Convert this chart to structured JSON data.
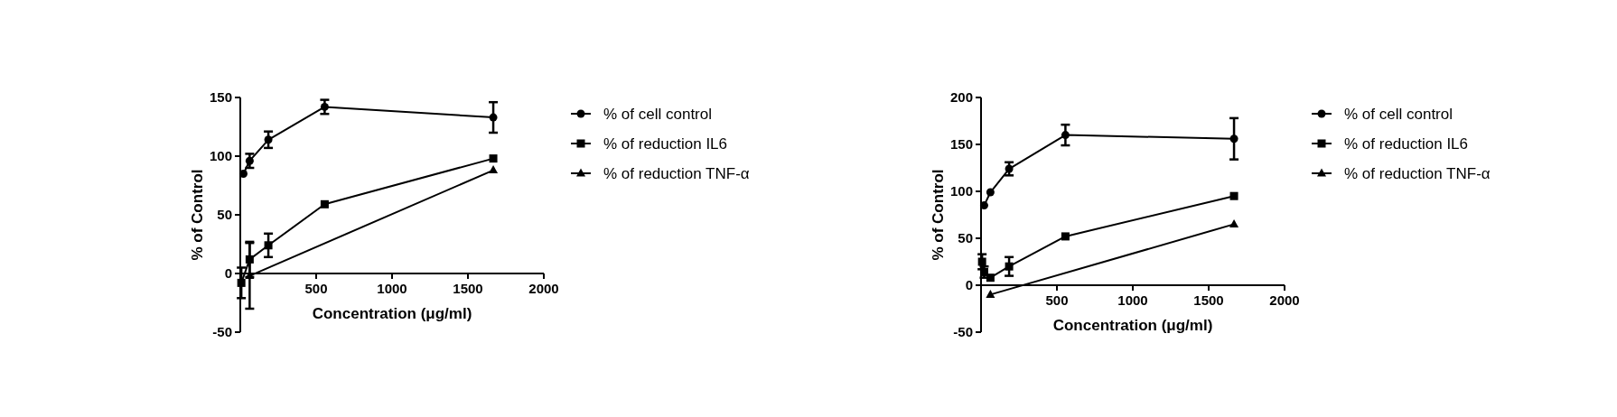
{
  "chart_data": [
    {
      "type": "line",
      "xlabel": "Concentration (μg/ml)",
      "ylabel": "% of Control",
      "xlim": [
        0,
        2000
      ],
      "ylim": [
        -50,
        150
      ],
      "xticks": [
        500,
        1000,
        1500,
        2000
      ],
      "yticks": [
        -50,
        0,
        50,
        100,
        150
      ],
      "legend": "right",
      "grid": false,
      "series": [
        {
          "name": "% of cell control",
          "color": "#000000",
          "marker": "circle",
          "x": [
            20.6,
            61.7,
            185,
            556,
            1667
          ],
          "values": [
            85,
            96,
            114,
            142,
            133
          ],
          "errors": [
            null,
            6,
            7,
            6,
            13
          ]
        },
        {
          "name": "% of reduction IL6",
          "color": "#000000",
          "marker": "square",
          "x": [
            6.86,
            61.7,
            185,
            556,
            1667
          ],
          "values": [
            -8,
            12,
            24,
            59,
            98
          ],
          "errors": [
            13,
            15,
            10,
            null,
            null
          ]
        },
        {
          "name": "% of reduction TNF-α",
          "color": "#000000",
          "marker": "triangle",
          "x": [
            61.7,
            1667
          ],
          "values": [
            -2,
            88
          ],
          "errors": [
            28,
            null
          ]
        }
      ]
    },
    {
      "type": "line",
      "xlabel": "Concentration (μg/ml)",
      "ylabel": "% of Control",
      "xlim": [
        0,
        2000
      ],
      "ylim": [
        -50,
        200
      ],
      "xticks": [
        500,
        1000,
        1500,
        2000
      ],
      "yticks": [
        -50,
        0,
        50,
        100,
        150,
        200
      ],
      "legend": "right",
      "grid": false,
      "series": [
        {
          "name": "% of cell control",
          "color": "#000000",
          "marker": "circle",
          "x": [
            20.6,
            61.7,
            185,
            556,
            1667
          ],
          "values": [
            85,
            99,
            124,
            160,
            156
          ],
          "errors": [
            null,
            null,
            7,
            11,
            22
          ]
        },
        {
          "name": "% of reduction IL6",
          "color": "#000000",
          "marker": "square",
          "x": [
            6.86,
            20.6,
            61.7,
            185,
            556,
            1667
          ],
          "values": [
            25,
            14,
            8,
            20,
            52,
            95
          ],
          "errors": [
            8,
            6,
            null,
            10,
            null,
            null
          ]
        },
        {
          "name": "% of reduction TNF-α",
          "color": "#000000",
          "marker": "triangle",
          "x": [
            61.7,
            1667
          ],
          "values": [
            -10,
            65
          ],
          "errors": [
            null,
            null
          ]
        }
      ]
    }
  ]
}
